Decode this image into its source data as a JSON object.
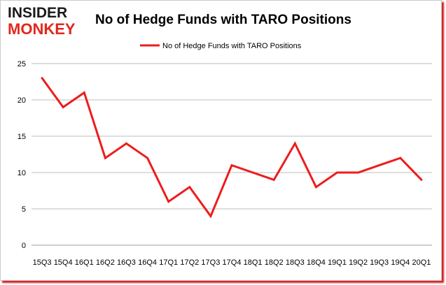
{
  "logo": {
    "line1": "INSIDER",
    "line2": "MONKEY"
  },
  "colors": {
    "series": "#ee1c1c",
    "logo_dark": "#1a1a1a",
    "logo_red": "#e0291c",
    "grid": "#bdbdbd"
  },
  "chart_data": {
    "type": "line",
    "title": "No of Hedge Funds with TARO Positions",
    "legend_position": "top",
    "grid": true,
    "ylim": [
      0,
      25
    ],
    "yticks": [
      0,
      5,
      10,
      15,
      20,
      25
    ],
    "categories": [
      "15Q3",
      "15Q4",
      "16Q1",
      "16Q2",
      "16Q3",
      "16Q4",
      "17Q1",
      "17Q2",
      "17Q3",
      "17Q4",
      "18Q1",
      "18Q2",
      "18Q3",
      "18Q4",
      "19Q1",
      "19Q2",
      "19Q3",
      "19Q4",
      "20Q1"
    ],
    "series": [
      {
        "name": "No of Hedge Funds with TARO Positions",
        "values": [
          23,
          19,
          21,
          12,
          14,
          12,
          6,
          8,
          4,
          11,
          10,
          9,
          14,
          8,
          10,
          10,
          11,
          12,
          9
        ]
      }
    ]
  }
}
